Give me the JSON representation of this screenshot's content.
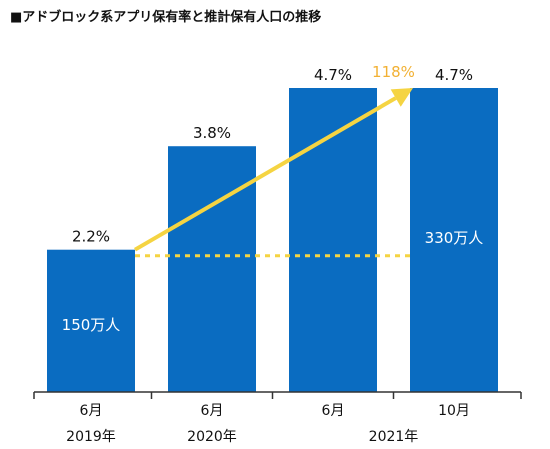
{
  "title": "■アドブロック系アプリ保有率と推計保有人口の推移",
  "colors": {
    "bar": "#0a6cc1",
    "arrow": "#f5d442",
    "growth_text": "#f2b134",
    "axis": "#333333"
  },
  "chart_data": {
    "type": "bar",
    "categories": [
      "6月",
      "6月",
      "6月",
      "10月"
    ],
    "year_labels": [
      {
        "label": "2019年",
        "span": [
          0,
          0
        ]
      },
      {
        "label": "2020年",
        "span": [
          1,
          1
        ]
      },
      {
        "label": "2021年",
        "span": [
          2,
          3
        ]
      }
    ],
    "values": [
      2.2,
      3.8,
      4.7,
      4.7
    ],
    "value_labels": [
      "2.2%",
      "3.8%",
      "4.7%",
      "4.7%"
    ],
    "population_labels": [
      {
        "index": 0,
        "text": "150万人"
      },
      {
        "index": 3,
        "text": "330万人"
      }
    ],
    "growth_label": "118%",
    "ylim": [
      0,
      5.2
    ],
    "xlabel": "",
    "ylabel": ""
  }
}
